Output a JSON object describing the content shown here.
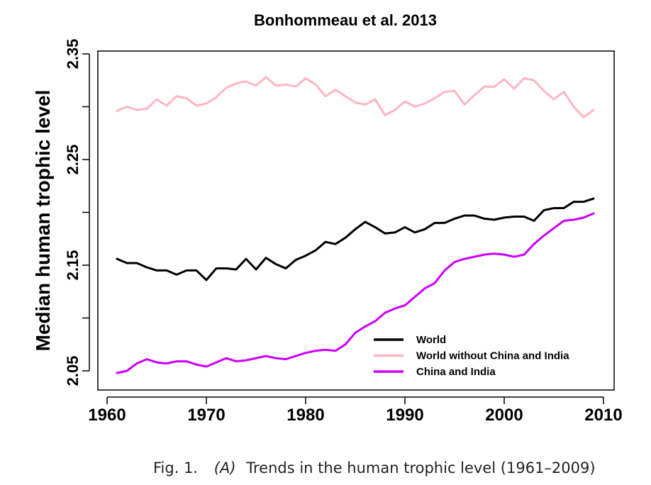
{
  "chart_data": {
    "type": "line",
    "title": "Bonhommeau et al. 2013",
    "xlabel": "",
    "ylabel": "Median human trophic level",
    "xlim": [
      1958.5,
      2011
    ],
    "ylim": [
      2.04,
      2.345
    ],
    "x_ticks": [
      1960,
      1970,
      1980,
      1990,
      2000,
      2010
    ],
    "x_tick_labels": [
      "1960",
      "1970",
      "1980",
      "1990",
      "2000",
      "2010"
    ],
    "y_ticks": [
      2.05,
      2.1,
      2.15,
      2.2,
      2.25,
      2.3,
      2.35
    ],
    "y_tick_labels": [
      "2.05",
      "",
      "2.15",
      "",
      "2.25",
      "",
      "2.35"
    ],
    "grid": false,
    "legend_position": "bottom-right",
    "x": [
      1961,
      1962,
      1963,
      1964,
      1965,
      1966,
      1967,
      1968,
      1969,
      1970,
      1971,
      1972,
      1973,
      1974,
      1975,
      1976,
      1977,
      1978,
      1979,
      1980,
      1981,
      1982,
      1983,
      1984,
      1985,
      1986,
      1987,
      1988,
      1989,
      1990,
      1991,
      1992,
      1993,
      1994,
      1995,
      1996,
      1997,
      1998,
      1999,
      2000,
      2001,
      2002,
      2003,
      2004,
      2005,
      2006,
      2007,
      2008,
      2009
    ],
    "series": [
      {
        "name": "World",
        "color": "#000000",
        "values": [
          2.156,
          2.152,
          2.152,
          2.148,
          2.145,
          2.145,
          2.141,
          2.145,
          2.145,
          2.136,
          2.147,
          2.147,
          2.146,
          2.156,
          2.146,
          2.157,
          2.151,
          2.147,
          2.155,
          2.159,
          2.164,
          2.172,
          2.17,
          2.176,
          2.184,
          2.191,
          2.186,
          2.18,
          2.181,
          2.186,
          2.181,
          2.184,
          2.19,
          2.19,
          2.194,
          2.197,
          2.197,
          2.194,
          2.193,
          2.195,
          2.196,
          2.196,
          2.192,
          2.202,
          2.204,
          2.204,
          2.21,
          2.21,
          2.213
        ]
      },
      {
        "name": "World without China and India",
        "color": "#ffb6c1",
        "values": [
          2.296,
          2.3,
          2.297,
          2.298,
          2.307,
          2.301,
          2.31,
          2.308,
          2.301,
          2.303,
          2.309,
          2.318,
          2.322,
          2.324,
          2.32,
          2.328,
          2.32,
          2.321,
          2.319,
          2.327,
          2.321,
          2.31,
          2.316,
          2.31,
          2.304,
          2.302,
          2.307,
          2.292,
          2.297,
          2.305,
          2.3,
          2.303,
          2.308,
          2.314,
          2.315,
          2.302,
          2.311,
          2.319,
          2.319,
          2.326,
          2.317,
          2.327,
          2.325,
          2.315,
          2.307,
          2.314,
          2.3,
          2.29,
          2.297
        ]
      },
      {
        "name": "China and India",
        "color": "#cc00ff",
        "values": [
          2.048,
          2.05,
          2.057,
          2.061,
          2.058,
          2.057,
          2.059,
          2.059,
          2.056,
          2.054,
          2.058,
          2.062,
          2.059,
          2.06,
          2.062,
          2.064,
          2.062,
          2.061,
          2.064,
          2.067,
          2.069,
          2.07,
          2.069,
          2.075,
          2.086,
          2.092,
          2.097,
          2.105,
          2.109,
          2.112,
          2.12,
          2.128,
          2.133,
          2.145,
          2.153,
          2.156,
          2.158,
          2.16,
          2.161,
          2.16,
          2.158,
          2.16,
          2.17,
          2.178,
          2.185,
          2.192,
          2.193,
          2.195,
          2.199
        ]
      }
    ]
  },
  "caption": {
    "fig_label": "Fig. 1.",
    "panel": "(A)",
    "text": "Trends in the human trophic level (1961–2009)"
  }
}
